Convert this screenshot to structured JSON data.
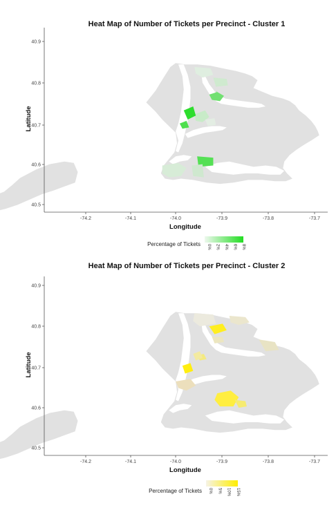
{
  "chart_data": [
    {
      "type": "choropleth",
      "title": "Heat Map of Number of Tickets per Precinct - Cluster 1",
      "xlabel": "Longitude",
      "ylabel": "Latitude",
      "xticks": [
        "-74.2",
        "-74.1",
        "-74.0",
        "-73.9",
        "-73.8",
        "-73.7"
      ],
      "yticks": [
        "40.9",
        "40.8",
        "40.7",
        "40.6",
        "40.5"
      ],
      "xlim": [
        -74.27,
        -73.68
      ],
      "ylim": [
        40.49,
        40.92
      ],
      "grid": false,
      "legend": {
        "title": "Percentage of Tickets",
        "ticks": [
          "0%",
          "2%",
          "4%",
          "6%",
          "8%"
        ],
        "color_low": "#eef8ee",
        "color_high": "#22dd22",
        "placement": "bottom"
      },
      "highlighted_precincts": [
        {
          "lon": -74.002,
          "lat": 40.783,
          "pct": 8
        },
        {
          "lon": -74.005,
          "lat": 40.763,
          "pct": 7
        },
        {
          "lon": -73.92,
          "lat": 40.812,
          "pct": 6
        },
        {
          "lon": -73.94,
          "lat": 40.846,
          "pct": 5
        },
        {
          "lon": -73.95,
          "lat": 40.662,
          "pct": 6.5
        },
        {
          "lon": -73.98,
          "lat": 40.79,
          "pct": 3
        },
        {
          "lon": -73.96,
          "lat": 40.877,
          "pct": 2
        }
      ]
    },
    {
      "type": "choropleth",
      "title": "Heat Map of Number of Tickets per Precinct - Cluster 2",
      "xlabel": "Longitude",
      "ylabel": "Latitude",
      "xticks": [
        "-74.2",
        "-74.1",
        "-74.0",
        "-73.9",
        "-73.8",
        "-73.7"
      ],
      "yticks": [
        "40.9",
        "40.8",
        "40.7",
        "40.6",
        "40.5"
      ],
      "xlim": [
        -74.27,
        -73.68
      ],
      "ylim": [
        40.49,
        40.92
      ],
      "grid": false,
      "legend": {
        "title": "Percentage of Tickets",
        "ticks": [
          "0%",
          "5%",
          "10%",
          "15%"
        ],
        "color_low": "#f6f3e6",
        "color_high": "#ffee00",
        "placement": "bottom"
      },
      "highlighted_precincts": [
        {
          "lon": -73.92,
          "lat": 40.848,
          "pct": 15
        },
        {
          "lon": -74.005,
          "lat": 40.773,
          "pct": 14
        },
        {
          "lon": -73.9,
          "lat": 40.623,
          "pct": 13
        },
        {
          "lon": -73.87,
          "lat": 40.607,
          "pct": 10
        },
        {
          "lon": -73.96,
          "lat": 40.655,
          "pct": 6
        },
        {
          "lon": -73.97,
          "lat": 40.79,
          "pct": 5
        },
        {
          "lon": -73.88,
          "lat": 40.86,
          "pct": 4
        }
      ]
    }
  ]
}
